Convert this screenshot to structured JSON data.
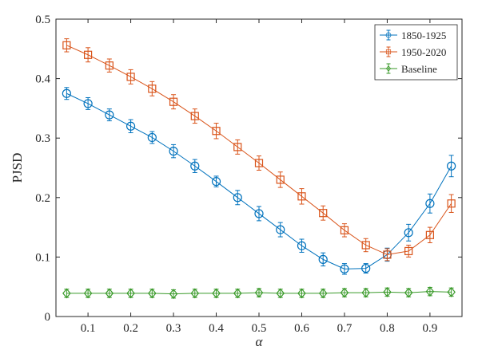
{
  "chart_data": {
    "type": "line",
    "xlabel": "α",
    "ylabel": "PJSD",
    "xlim": [
      0.025,
      0.975
    ],
    "ylim": [
      0,
      0.5
    ],
    "xticks": [
      0.1,
      0.2,
      0.3,
      0.4,
      0.5,
      0.6,
      0.7,
      0.8,
      0.9
    ],
    "yticks": [
      0,
      0.1,
      0.2,
      0.3,
      0.4,
      0.5
    ],
    "xtick_labels": [
      "0.1",
      "0.2",
      "0.3",
      "0.4",
      "0.5",
      "0.6",
      "0.7",
      "0.8",
      "0.9"
    ],
    "ytick_labels": [
      "0",
      "0.1",
      "0.2",
      "0.3",
      "0.4",
      "0.5"
    ],
    "grid": false,
    "legend_position": "top-right",
    "x": [
      0.05,
      0.1,
      0.15,
      0.2,
      0.25,
      0.3,
      0.35,
      0.4,
      0.45,
      0.5,
      0.55,
      0.6,
      0.65,
      0.7,
      0.75,
      0.8,
      0.85,
      0.9,
      0.95
    ],
    "series": [
      {
        "name": "1850-1925",
        "color": "#0072BD",
        "marker": "circle",
        "values": [
          0.375,
          0.358,
          0.339,
          0.32,
          0.301,
          0.278,
          0.253,
          0.227,
          0.2,
          0.173,
          0.146,
          0.119,
          0.096,
          0.08,
          0.081,
          0.104,
          0.141,
          0.19,
          0.253
        ],
        "errors": [
          0.01,
          0.01,
          0.01,
          0.011,
          0.01,
          0.011,
          0.011,
          0.009,
          0.012,
          0.012,
          0.012,
          0.011,
          0.011,
          0.009,
          0.008,
          0.011,
          0.014,
          0.016,
          0.018
        ]
      },
      {
        "name": "1950-2020",
        "color": "#D95319",
        "marker": "square",
        "values": [
          0.456,
          0.44,
          0.422,
          0.403,
          0.383,
          0.361,
          0.337,
          0.312,
          0.285,
          0.258,
          0.23,
          0.202,
          0.174,
          0.145,
          0.12,
          0.104,
          0.11,
          0.137,
          0.19
        ],
        "errors": [
          0.011,
          0.012,
          0.011,
          0.012,
          0.012,
          0.012,
          0.012,
          0.013,
          0.012,
          0.012,
          0.013,
          0.013,
          0.012,
          0.011,
          0.011,
          0.01,
          0.01,
          0.013,
          0.015
        ]
      },
      {
        "name": "Baseline",
        "color": "#3A9A2A",
        "marker": "diamond",
        "values": [
          0.039,
          0.039,
          0.039,
          0.039,
          0.039,
          0.038,
          0.039,
          0.039,
          0.039,
          0.04,
          0.039,
          0.039,
          0.039,
          0.04,
          0.04,
          0.041,
          0.04,
          0.042,
          0.041
        ],
        "errors": [
          0.007,
          0.007,
          0.007,
          0.007,
          0.007,
          0.007,
          0.007,
          0.007,
          0.007,
          0.007,
          0.007,
          0.007,
          0.007,
          0.007,
          0.007,
          0.007,
          0.007,
          0.007,
          0.007
        ]
      }
    ]
  }
}
